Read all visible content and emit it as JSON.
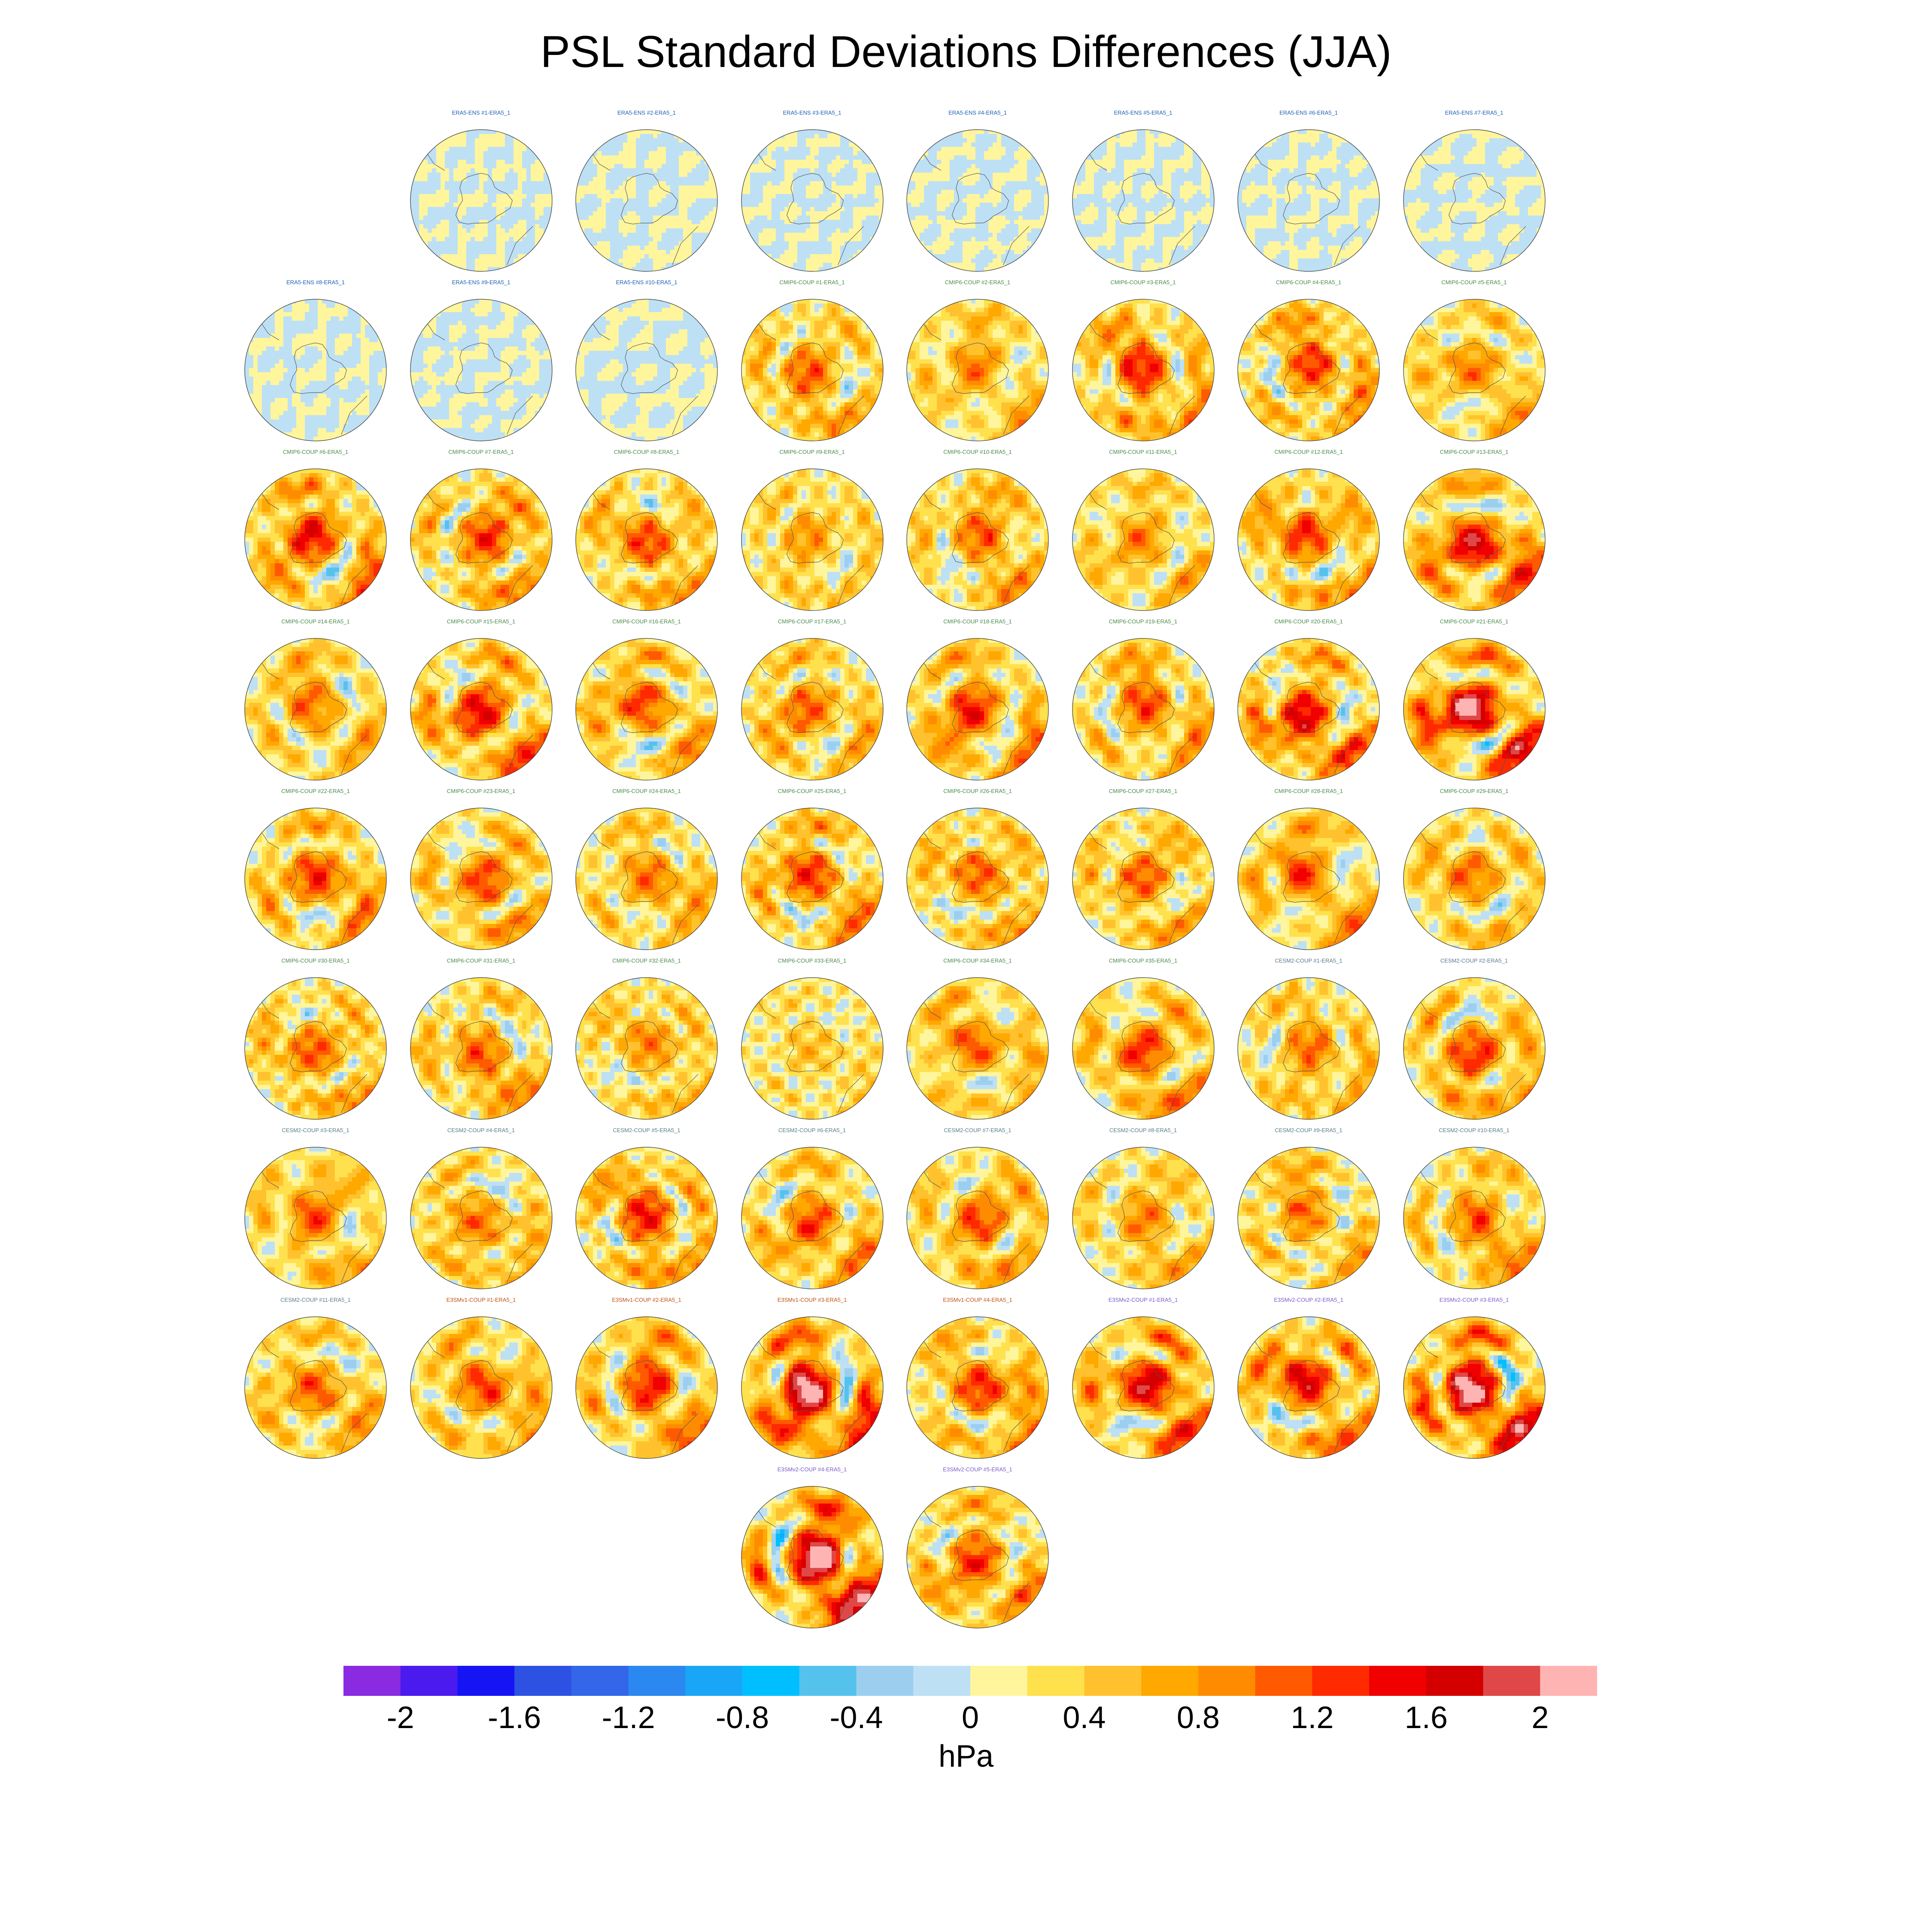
{
  "title": "PSL Standard Deviations Differences (JJA)",
  "colors": {
    "ERA5-ENS": "#1a5fb4",
    "CMIP6-COUP": "#4a8a4a",
    "CESM2-COUP": "#5a7a8a",
    "E3SMv1-COUP": "#c05010",
    "E3SMv2-COUP": "#7a5ac8"
  },
  "chart_data": {
    "type": "heatmap",
    "title": "PSL Standard Deviations Differences (JJA)",
    "projection": "south-polar-stereographic",
    "colorbar": {
      "units": "hPa",
      "levels": [
        -2.2,
        -2.0,
        -1.8,
        -1.6,
        -1.4,
        -1.2,
        -1.0,
        -0.8,
        -0.6,
        -0.4,
        -0.2,
        0.0,
        0.2,
        0.4,
        0.6,
        0.8,
        1.0,
        1.2,
        1.4,
        1.6,
        1.8,
        2.0,
        2.2
      ],
      "tick_values": [
        -2,
        -1.6,
        -1.2,
        -0.8,
        -0.4,
        0,
        0.4,
        0.8,
        1.2,
        1.6,
        2
      ],
      "tick_labels": [
        "-2",
        "-1.6",
        "-1.2",
        "-0.8",
        "-0.4",
        "0",
        "0.4",
        "0.8",
        "1.2",
        "1.6",
        "2"
      ],
      "colors": [
        "#8a2be2",
        "#4b1aef",
        "#1414f5",
        "#2d52e3",
        "#3366e8",
        "#2b88f0",
        "#1aa6f7",
        "#00bfff",
        "#55c2ee",
        "#9ccfef",
        "#bde0f5",
        "#fff59d",
        "#ffe14d",
        "#ffc22e",
        "#ffa800",
        "#ff8c00",
        "#ff5a00",
        "#ff2a00",
        "#f00000",
        "#d40000",
        "#e04848",
        "#ffb4b4"
      ]
    },
    "panels": [
      {
        "title": "ERA5-ENS #1-ERA5_1",
        "group": "ERA5-ENS",
        "intensity": 0.0
      },
      {
        "title": "ERA5-ENS #2-ERA5_1",
        "group": "ERA5-ENS",
        "intensity": 0.0
      },
      {
        "title": "ERA5-ENS #3-ERA5_1",
        "group": "ERA5-ENS",
        "intensity": 0.0
      },
      {
        "title": "ERA5-ENS #4-ERA5_1",
        "group": "ERA5-ENS",
        "intensity": 0.0
      },
      {
        "title": "ERA5-ENS #5-ERA5_1",
        "group": "ERA5-ENS",
        "intensity": 0.0
      },
      {
        "title": "ERA5-ENS #6-ERA5_1",
        "group": "ERA5-ENS",
        "intensity": 0.0
      },
      {
        "title": "ERA5-ENS #7-ERA5_1",
        "group": "ERA5-ENS",
        "intensity": 0.0
      },
      {
        "title": "ERA5-ENS #8-ERA5_1",
        "group": "ERA5-ENS",
        "intensity": 0.0
      },
      {
        "title": "ERA5-ENS #9-ERA5_1",
        "group": "ERA5-ENS",
        "intensity": 0.0
      },
      {
        "title": "ERA5-ENS #10-ERA5_1",
        "group": "ERA5-ENS",
        "intensity": 0.0
      },
      {
        "title": "CMIP6-COUP #1-ERA5_1",
        "group": "CMIP6-COUP",
        "intensity": 1.0
      },
      {
        "title": "CMIP6-COUP #2-ERA5_1",
        "group": "CMIP6-COUP",
        "intensity": 0.8
      },
      {
        "title": "CMIP6-COUP #3-ERA5_1",
        "group": "CMIP6-COUP",
        "intensity": 1.3
      },
      {
        "title": "CMIP6-COUP #4-ERA5_1",
        "group": "CMIP6-COUP",
        "intensity": 1.2
      },
      {
        "title": "CMIP6-COUP #5-ERA5_1",
        "group": "CMIP6-COUP",
        "intensity": 0.8
      },
      {
        "title": "CMIP6-COUP #6-ERA5_1",
        "group": "CMIP6-COUP",
        "intensity": 1.4
      },
      {
        "title": "CMIP6-COUP #7-ERA5_1",
        "group": "CMIP6-COUP",
        "intensity": 1.2
      },
      {
        "title": "CMIP6-COUP #8-ERA5_1",
        "group": "CMIP6-COUP",
        "intensity": 1.1
      },
      {
        "title": "CMIP6-COUP #9-ERA5_1",
        "group": "CMIP6-COUP",
        "intensity": 0.7
      },
      {
        "title": "CMIP6-COUP #10-ERA5_1",
        "group": "CMIP6-COUP",
        "intensity": 1.0
      },
      {
        "title": "CMIP6-COUP #11-ERA5_1",
        "group": "CMIP6-COUP",
        "intensity": 0.8
      },
      {
        "title": "CMIP6-COUP #12-ERA5_1",
        "group": "CMIP6-COUP",
        "intensity": 1.2
      },
      {
        "title": "CMIP6-COUP #13-ERA5_1",
        "group": "CMIP6-COUP",
        "intensity": 1.6
      },
      {
        "title": "CMIP6-COUP #14-ERA5_1",
        "group": "CMIP6-COUP",
        "intensity": 0.9
      },
      {
        "title": "CMIP6-COUP #15-ERA5_1",
        "group": "CMIP6-COUP",
        "intensity": 1.4
      },
      {
        "title": "CMIP6-COUP #16-ERA5_1",
        "group": "CMIP6-COUP",
        "intensity": 1.1
      },
      {
        "title": "CMIP6-COUP #17-ERA5_1",
        "group": "CMIP6-COUP",
        "intensity": 1.0
      },
      {
        "title": "CMIP6-COUP #18-ERA5_1",
        "group": "CMIP6-COUP",
        "intensity": 1.3
      },
      {
        "title": "CMIP6-COUP #19-ERA5_1",
        "group": "CMIP6-COUP",
        "intensity": 1.1
      },
      {
        "title": "CMIP6-COUP #20-ERA5_1",
        "group": "CMIP6-COUP",
        "intensity": 1.5
      },
      {
        "title": "CMIP6-COUP #21-ERA5_1",
        "group": "CMIP6-COUP",
        "intensity": 2.0
      },
      {
        "title": "CMIP6-COUP #22-ERA5_1",
        "group": "CMIP6-COUP",
        "intensity": 1.2
      },
      {
        "title": "CMIP6-COUP #23-ERA5_1",
        "group": "CMIP6-COUP",
        "intensity": 1.1
      },
      {
        "title": "CMIP6-COUP #24-ERA5_1",
        "group": "CMIP6-COUP",
        "intensity": 0.9
      },
      {
        "title": "CMIP6-COUP #25-ERA5_1",
        "group": "CMIP6-COUP",
        "intensity": 1.2
      },
      {
        "title": "CMIP6-COUP #26-ERA5_1",
        "group": "CMIP6-COUP",
        "intensity": 1.0
      },
      {
        "title": "CMIP6-COUP #27-ERA5_1",
        "group": "CMIP6-COUP",
        "intensity": 1.0
      },
      {
        "title": "CMIP6-COUP #28-ERA5_1",
        "group": "CMIP6-COUP",
        "intensity": 1.1
      },
      {
        "title": "CMIP6-COUP #29-ERA5_1",
        "group": "CMIP6-COUP",
        "intensity": 0.9
      },
      {
        "title": "CMIP6-COUP #30-ERA5_1",
        "group": "CMIP6-COUP",
        "intensity": 1.0
      },
      {
        "title": "CMIP6-COUP #31-ERA5_1",
        "group": "CMIP6-COUP",
        "intensity": 1.0
      },
      {
        "title": "CMIP6-COUP #32-ERA5_1",
        "group": "CMIP6-COUP",
        "intensity": 0.8
      },
      {
        "title": "CMIP6-COUP #33-ERA5_1",
        "group": "CMIP6-COUP",
        "intensity": 0.4
      },
      {
        "title": "CMIP6-COUP #34-ERA5_1",
        "group": "CMIP6-COUP",
        "intensity": 1.0
      },
      {
        "title": "CMIP6-COUP #35-ERA5_1",
        "group": "CMIP6-COUP",
        "intensity": 1.2
      },
      {
        "title": "CESM2-COUP #1-ERA5_1",
        "group": "CESM2-COUP",
        "intensity": 0.9
      },
      {
        "title": "CESM2-COUP #2-ERA5_1",
        "group": "CESM2-COUP",
        "intensity": 1.2
      },
      {
        "title": "CESM2-COUP #3-ERA5_1",
        "group": "CESM2-COUP",
        "intensity": 1.0
      },
      {
        "title": "CESM2-COUP #4-ERA5_1",
        "group": "CESM2-COUP",
        "intensity": 0.9
      },
      {
        "title": "CESM2-COUP #5-ERA5_1",
        "group": "CESM2-COUP",
        "intensity": 1.3
      },
      {
        "title": "CESM2-COUP #6-ERA5_1",
        "group": "CESM2-COUP",
        "intensity": 1.1
      },
      {
        "title": "CESM2-COUP #7-ERA5_1",
        "group": "CESM2-COUP",
        "intensity": 1.1
      },
      {
        "title": "CESM2-COUP #8-ERA5_1",
        "group": "CESM2-COUP",
        "intensity": 0.8
      },
      {
        "title": "CESM2-COUP #9-ERA5_1",
        "group": "CESM2-COUP",
        "intensity": 0.9
      },
      {
        "title": "CESM2-COUP #10-ERA5_1",
        "group": "CESM2-COUP",
        "intensity": 1.0
      },
      {
        "title": "CESM2-COUP #11-ERA5_1",
        "group": "CESM2-COUP",
        "intensity": 1.0
      },
      {
        "title": "E3SMv1-COUP #1-ERA5_1",
        "group": "E3SMv1-COUP",
        "intensity": 1.1
      },
      {
        "title": "E3SMv1-COUP #2-ERA5_1",
        "group": "E3SMv1-COUP",
        "intensity": 1.3
      },
      {
        "title": "E3SMv1-COUP #3-ERA5_1",
        "group": "E3SMv1-COUP",
        "intensity": 2.1
      },
      {
        "title": "E3SMv1-COUP #4-ERA5_1",
        "group": "E3SMv1-COUP",
        "intensity": 1.2
      },
      {
        "title": "E3SMv2-COUP #1-ERA5_1",
        "group": "E3SMv2-COUP",
        "intensity": 1.6
      },
      {
        "title": "E3SMv2-COUP #2-ERA5_1",
        "group": "E3SMv2-COUP",
        "intensity": 1.5
      },
      {
        "title": "E3SMv2-COUP #3-ERA5_1",
        "group": "E3SMv2-COUP",
        "intensity": 2.1
      },
      {
        "title": "E3SMv2-COUP #4-ERA5_1",
        "group": "E3SMv2-COUP",
        "intensity": 2.2
      },
      {
        "title": "E3SMv2-COUP #5-ERA5_1",
        "group": "E3SMv2-COUP",
        "intensity": 1.2
      }
    ]
  }
}
